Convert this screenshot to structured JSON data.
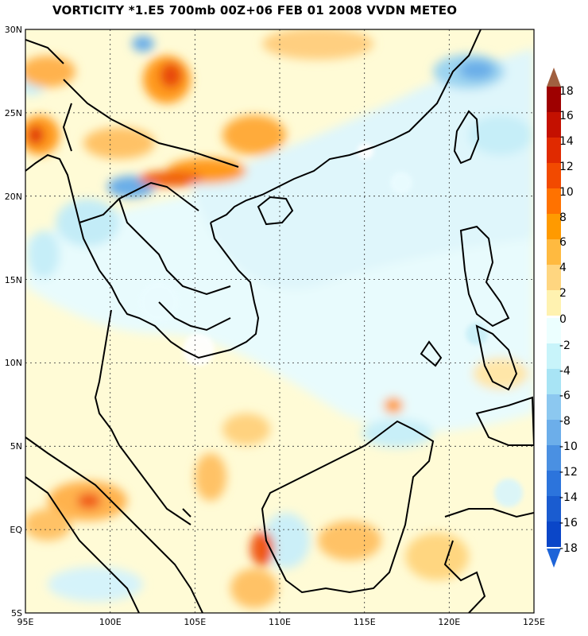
{
  "title": "VORTICITY *1.E5 700mb 00Z+06 FEB 01 2008 VVDN METEO",
  "map": {
    "lon_range": [
      95,
      125
    ],
    "lat_range": [
      -5,
      30
    ],
    "lon_labels": [
      "95E",
      "100E",
      "105E",
      "110E",
      "115E",
      "120E",
      "125E"
    ],
    "lat_labels": [
      "30N",
      "25N",
      "20N",
      "15N",
      "10N",
      "5N",
      "EQ",
      "5S"
    ],
    "grid": "dotted"
  },
  "colorbar": {
    "positive_labels": [
      "18",
      "16",
      "14",
      "12",
      "10",
      "8",
      "6",
      "4",
      "2",
      "0"
    ],
    "negative_labels": [
      "-2",
      "-4",
      "-6",
      "-8",
      "-10",
      "-12",
      "-14",
      "-16",
      "-18"
    ],
    "positive_colors": [
      "#9e0000",
      "#c41000",
      "#e02a00",
      "#f24a00",
      "#ff7200",
      "#ff9a00",
      "#ffba40",
      "#ffd680",
      "#fff2b0"
    ],
    "negative_colors": [
      "#ecffff",
      "#c8f4fa",
      "#a8e4f5",
      "#8cc8f0",
      "#6caeea",
      "#4a90e2",
      "#2c74dc",
      "#1a5cd0",
      "#0a46c8"
    ],
    "top_arrow_color": "#a06040",
    "bottom_arrow_color": "#1e64d8"
  }
}
